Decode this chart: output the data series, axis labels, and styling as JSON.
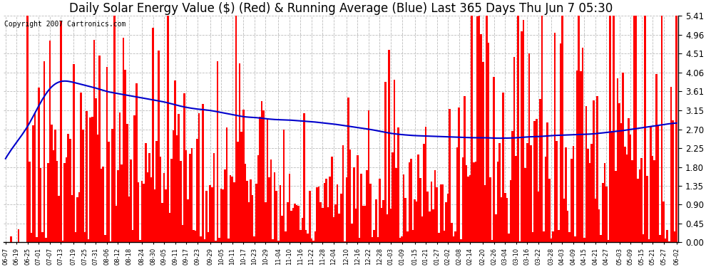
{
  "title": "Daily Solar Energy Value ($) (Red) & Running Average (Blue) Last 365 Days Thu Jun 7 05:30",
  "copyright": "Copyright 2007 Cartronics.com",
  "ylim": [
    0.0,
    5.41
  ],
  "yticks": [
    0.0,
    0.45,
    0.9,
    1.35,
    1.8,
    2.25,
    2.7,
    3.15,
    3.61,
    4.06,
    4.51,
    4.96,
    5.41
  ],
  "bar_color": "#ff0000",
  "line_color": "#0000cc",
  "bg_color": "#ffffff",
  "grid_color": "#bbbbbb",
  "title_fontsize": 12,
  "copyright_fontsize": 7,
  "x_labels": [
    "06-07",
    "06-19",
    "06-25",
    "07-01",
    "07-07",
    "07-13",
    "07-19",
    "07-25",
    "07-31",
    "08-06",
    "08-12",
    "08-18",
    "08-24",
    "08-30",
    "09-05",
    "09-11",
    "09-17",
    "09-23",
    "09-29",
    "10-05",
    "10-11",
    "10-17",
    "10-23",
    "10-29",
    "11-04",
    "11-10",
    "11-16",
    "11-22",
    "11-28",
    "12-04",
    "12-10",
    "12-16",
    "12-22",
    "12-28",
    "01-03",
    "01-09",
    "01-15",
    "01-21",
    "01-27",
    "02-02",
    "02-08",
    "02-14",
    "02-20",
    "02-26",
    "03-04",
    "03-10",
    "03-16",
    "03-22",
    "03-28",
    "04-03",
    "04-09",
    "04-15",
    "04-21",
    "04-27",
    "05-03",
    "05-09",
    "05-15",
    "05-21",
    "05-27",
    "06-02"
  ],
  "blue_line_points": [
    2.0,
    2.4,
    2.8,
    3.3,
    3.7,
    3.85,
    3.82,
    3.75,
    3.68,
    3.6,
    3.55,
    3.5,
    3.45,
    3.4,
    3.35,
    3.28,
    3.22,
    3.18,
    3.15,
    3.1,
    3.05,
    3.0,
    2.98,
    2.95,
    2.93,
    2.92,
    2.9,
    2.88,
    2.85,
    2.82,
    2.78,
    2.74,
    2.7,
    2.65,
    2.6,
    2.57,
    2.55,
    2.54,
    2.53,
    2.52,
    2.51,
    2.5,
    2.5,
    2.49,
    2.49,
    2.5,
    2.52,
    2.53,
    2.55,
    2.56,
    2.57,
    2.58,
    2.6,
    2.63,
    2.66,
    2.7,
    2.74,
    2.78,
    2.82,
    2.85
  ]
}
